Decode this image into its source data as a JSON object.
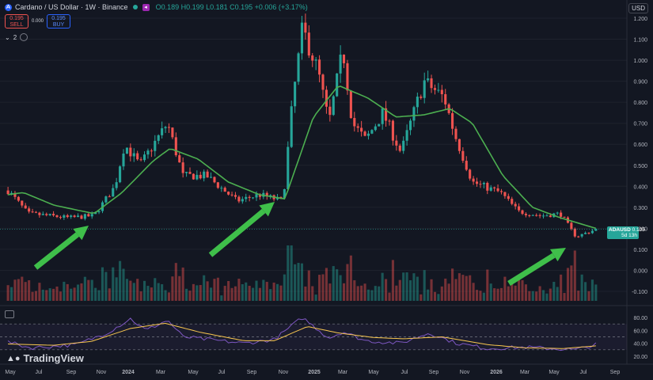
{
  "header": {
    "title": "Cardano / US Dollar · 1W · Binance",
    "ohlc": "O0.189 H0.199 L0.181 C0.195 +0.006 (+3.17%)",
    "currency": "USD",
    "sell_price": "0.195",
    "sell_label": "SELL",
    "spread": "0.000",
    "buy_price": "0.195",
    "buy_label": "BUY",
    "indicators_count": "2"
  },
  "price_tag": {
    "symbol": "ADAUSD",
    "price": "0.195",
    "countdown": "5d 13h"
  },
  "brand": "TradingView",
  "colors": {
    "background": "#131722",
    "up": "#26a69a",
    "down": "#ef5350",
    "ma": "#4caf50",
    "rsi": "#7e57c2",
    "rsi_ma": "#f9c74f",
    "arrow": "#3fbf4a"
  },
  "chart_data": {
    "type": "candlestick",
    "interval": "1W",
    "x_axis_labels": [
      "May",
      "Jul",
      "Sep",
      "Nov",
      "2024",
      "Mar",
      "May",
      "Jul",
      "Sep",
      "Nov",
      "2025",
      "Mar",
      "May",
      "Jul",
      "Sep",
      "Nov",
      "2026",
      "Mar",
      "May",
      "Jul",
      "Sep"
    ],
    "y_ticks": [
      "1.200",
      "1.100",
      "1.000",
      "0.900",
      "0.800",
      "0.700",
      "0.600",
      "0.500",
      "0.400",
      "0.300",
      "0.200",
      "0.100",
      "0.000",
      "-0.100"
    ],
    "rsi_ticks": [
      "80.00",
      "60.00",
      "40.00",
      "20.00"
    ],
    "anchors": [
      {
        "x": "2023-05-01",
        "close": 0.38
      },
      {
        "x": "2023-06-10",
        "close": 0.27
      },
      {
        "x": "2023-09-01",
        "close": 0.25
      },
      {
        "x": "2023-10-20",
        "close": 0.26
      },
      {
        "x": "2023-12-01",
        "close": 0.4
      },
      {
        "x": "2023-12-20",
        "close": 0.6
      },
      {
        "x": "2024-01-20",
        "close": 0.5
      },
      {
        "x": "2024-03-15",
        "close": 0.7
      },
      {
        "x": "2024-04-15",
        "close": 0.45
      },
      {
        "x": "2024-06-01",
        "close": 0.45
      },
      {
        "x": "2024-08-01",
        "close": 0.33
      },
      {
        "x": "2024-09-15",
        "close": 0.36
      },
      {
        "x": "2024-11-01",
        "close": 0.33
      },
      {
        "x": "2024-11-20",
        "close": 0.8
      },
      {
        "x": "2024-12-10",
        "close": 1.15
      },
      {
        "x": "2025-01-10",
        "close": 0.95
      },
      {
        "x": "2025-02-01",
        "close": 0.7
      },
      {
        "x": "2025-03-01",
        "close": 1.05
      },
      {
        "x": "2025-03-20",
        "close": 0.7
      },
      {
        "x": "2025-04-15",
        "close": 0.62
      },
      {
        "x": "2025-05-20",
        "close": 0.75
      },
      {
        "x": "2025-06-25",
        "close": 0.56
      },
      {
        "x": "2025-08-10",
        "close": 0.9
      },
      {
        "x": "2025-09-20",
        "close": 0.82
      },
      {
        "x": "2025-10-10",
        "close": 0.65
      },
      {
        "x": "2025-11-15",
        "close": 0.42
      },
      {
        "x": "2026-01-10",
        "close": 0.37
      },
      {
        "x": "2026-02-15",
        "close": 0.28
      },
      {
        "x": "2026-04-01",
        "close": 0.26
      },
      {
        "x": "2026-05-10",
        "close": 0.27
      },
      {
        "x": "2026-06-10",
        "close": 0.16
      },
      {
        "x": "2026-07-20",
        "close": 0.195
      }
    ],
    "sma_anchors": [
      {
        "x": "2023-05-01",
        "y": 0.36
      },
      {
        "x": "2023-06-01",
        "y": 0.37
      },
      {
        "x": "2023-08-01",
        "y": 0.31
      },
      {
        "x": "2023-10-20",
        "y": 0.27
      },
      {
        "x": "2023-12-15",
        "y": 0.37
      },
      {
        "x": "2024-02-15",
        "y": 0.52
      },
      {
        "x": "2024-03-20",
        "y": 0.58
      },
      {
        "x": "2024-05-15",
        "y": 0.53
      },
      {
        "x": "2024-07-15",
        "y": 0.42
      },
      {
        "x": "2024-09-15",
        "y": 0.36
      },
      {
        "x": "2024-11-05",
        "y": 0.34
      },
      {
        "x": "2025-01-01",
        "y": 0.73
      },
      {
        "x": "2025-02-20",
        "y": 0.88
      },
      {
        "x": "2025-04-20",
        "y": 0.82
      },
      {
        "x": "2025-06-15",
        "y": 0.73
      },
      {
        "x": "2025-08-10",
        "y": 0.74
      },
      {
        "x": "2025-10-01",
        "y": 0.77
      },
      {
        "x": "2025-11-15",
        "y": 0.7
      },
      {
        "x": "2026-01-15",
        "y": 0.45
      },
      {
        "x": "2026-03-15",
        "y": 0.3
      },
      {
        "x": "2026-05-10",
        "y": 0.25
      },
      {
        "x": "2026-07-20",
        "y": 0.2
      }
    ],
    "rsi_anchors": [
      {
        "x": "2023-05-01",
        "y": 42
      },
      {
        "x": "2023-06-15",
        "y": 33
      },
      {
        "x": "2023-09-15",
        "y": 38
      },
      {
        "x": "2023-11-15",
        "y": 56
      },
      {
        "x": "2024-01-01",
        "y": 78
      },
      {
        "x": "2024-02-01",
        "y": 60
      },
      {
        "x": "2024-03-15",
        "y": 76
      },
      {
        "x": "2024-04-15",
        "y": 50
      },
      {
        "x": "2024-06-15",
        "y": 45
      },
      {
        "x": "2024-08-15",
        "y": 40
      },
      {
        "x": "2024-10-15",
        "y": 46
      },
      {
        "x": "2024-12-10",
        "y": 80
      },
      {
        "x": "2025-02-01",
        "y": 48
      },
      {
        "x": "2025-03-01",
        "y": 58
      },
      {
        "x": "2025-04-15",
        "y": 44
      },
      {
        "x": "2025-06-25",
        "y": 40
      },
      {
        "x": "2025-08-20",
        "y": 56
      },
      {
        "x": "2025-10-15",
        "y": 40
      },
      {
        "x": "2025-12-15",
        "y": 32
      },
      {
        "x": "2026-03-01",
        "y": 34
      },
      {
        "x": "2026-06-10",
        "y": 30
      },
      {
        "x": "2026-07-20",
        "y": 38
      }
    ],
    "rsi_ma_anchors": [
      {
        "x": "2023-05-01",
        "y": 39
      },
      {
        "x": "2023-08-01",
        "y": 37
      },
      {
        "x": "2023-10-15",
        "y": 43
      },
      {
        "x": "2024-01-01",
        "y": 63
      },
      {
        "x": "2024-03-10",
        "y": 71
      },
      {
        "x": "2024-05-20",
        "y": 57
      },
      {
        "x": "2024-08-15",
        "y": 44
      },
      {
        "x": "2024-10-15",
        "y": 44
      },
      {
        "x": "2024-12-20",
        "y": 66
      },
      {
        "x": "2025-02-20",
        "y": 56
      },
      {
        "x": "2025-05-01",
        "y": 49
      },
      {
        "x": "2025-07-01",
        "y": 47
      },
      {
        "x": "2025-09-15",
        "y": 50
      },
      {
        "x": "2025-12-15",
        "y": 38
      },
      {
        "x": "2026-03-01",
        "y": 33
      },
      {
        "x": "2026-05-15",
        "y": 32
      },
      {
        "x": "2026-07-20",
        "y": 36
      }
    ],
    "rsi_levels": {
      "upper": 70,
      "middle": 50,
      "lower": 30
    },
    "annotations": [
      {
        "type": "arrow",
        "target": "2023-10-20",
        "points_to": "low"
      },
      {
        "type": "arrow",
        "target": "2024-11-01",
        "points_to": "low"
      },
      {
        "type": "arrow",
        "target": "2026-06-10",
        "points_to": "low"
      }
    ]
  }
}
